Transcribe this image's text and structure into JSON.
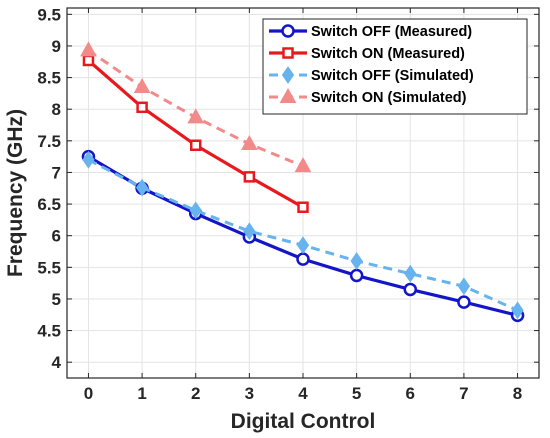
{
  "chart_data": {
    "type": "line",
    "xlabel": "Digital Control",
    "ylabel": "Frequency (GHz)",
    "xlim": [
      -0.4,
      8.4
    ],
    "ylim": [
      3.75,
      9.6
    ],
    "xticks": [
      0,
      1,
      2,
      3,
      4,
      5,
      6,
      7,
      8
    ],
    "xtick_labels": [
      "0",
      "1",
      "2",
      "3",
      "4",
      "5",
      "6",
      "7",
      "8"
    ],
    "yticks": [
      4,
      4.5,
      5,
      5.5,
      6,
      6.5,
      7,
      7.5,
      8,
      8.5,
      9,
      9.5
    ],
    "ytick_labels": [
      "4",
      "4.5",
      "5",
      "5.5",
      "6",
      "6.5",
      "7",
      "7.5",
      "8",
      "8.5",
      "9",
      "9.5"
    ],
    "grid": true,
    "legend_position": "top-right",
    "series": [
      {
        "name": "Switch OFF (Measured)",
        "x": [
          0,
          1,
          2,
          3,
          4,
          5,
          6,
          7,
          8
        ],
        "values": [
          7.25,
          6.75,
          6.35,
          5.98,
          5.63,
          5.37,
          5.15,
          4.95,
          4.74
        ],
        "color": "#1414c8",
        "line": "solid",
        "marker": "circle"
      },
      {
        "name": "Switch ON (Measured)",
        "x": [
          0,
          1,
          2,
          3,
          4
        ],
        "values": [
          8.77,
          8.03,
          7.43,
          6.93,
          6.45
        ],
        "color": "#e8191e",
        "line": "solid",
        "marker": "square"
      },
      {
        "name": "Switch OFF (Simulated)",
        "x": [
          0,
          1,
          2,
          3,
          4,
          5,
          6,
          7,
          8
        ],
        "values": [
          7.2,
          6.76,
          6.4,
          6.07,
          5.85,
          5.6,
          5.4,
          5.2,
          4.82
        ],
        "color": "#66b3ee",
        "line": "dashed",
        "marker": "diamond"
      },
      {
        "name": "Switch ON (Simulated)",
        "x": [
          0,
          1,
          2,
          3,
          4
        ],
        "values": [
          8.93,
          8.35,
          7.87,
          7.45,
          7.1
        ],
        "color": "#f28a8a",
        "line": "dashed",
        "marker": "triangle"
      }
    ]
  }
}
